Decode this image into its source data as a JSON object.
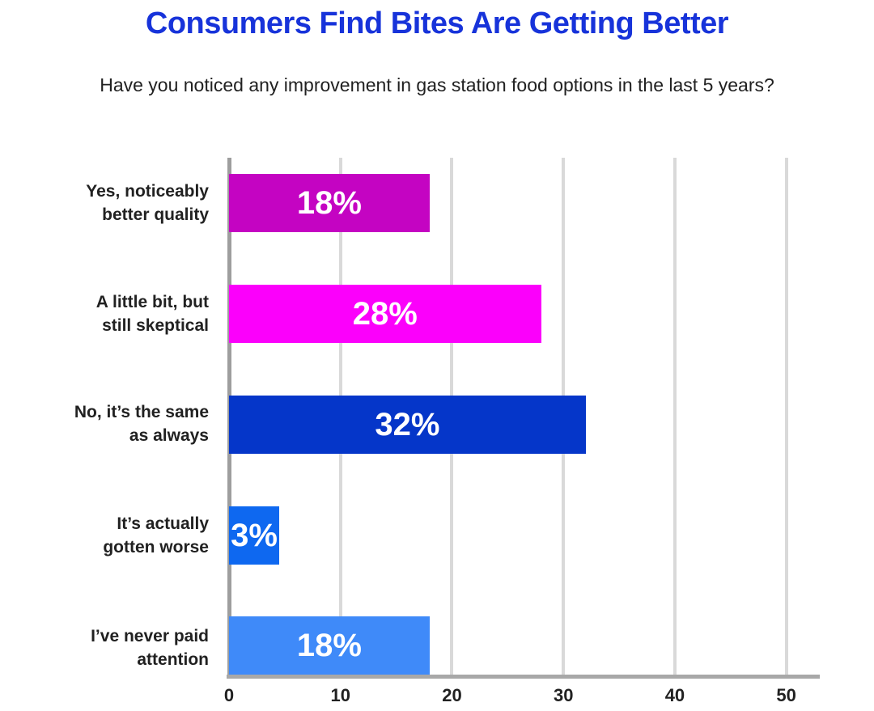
{
  "header": {
    "title": "Consumers Find Bites Are Getting Better",
    "subtitle": "Have you noticed any improvement in gas station food options in the last 5 years?"
  },
  "colors": {
    "title_blue": "#1733DA",
    "text_dark": "#212121",
    "value_label_white": "#FFFFFF",
    "gridline_gray": "#D9D9D9",
    "zero_line_gray": "#9E9E9E",
    "axis_line_gray": "#A8A8A8",
    "background": "#FFFFFF"
  },
  "chart_data": {
    "type": "bar",
    "orientation": "horizontal",
    "title": "Consumers Find Bites Are Getting Better",
    "subtitle": "Have you noticed any improvement in gas station food options in the last 5 years?",
    "categories": [
      "Yes, noticeably\nbetter quality",
      "A little bit, but\nstill skeptical",
      "No, it’s the same\nas always",
      "It’s actually\ngotten worse",
      "I’ve never paid\nattention"
    ],
    "values": [
      18,
      28,
      32,
      3,
      18
    ],
    "value_labels": [
      "18%",
      "28%",
      "32%",
      "3%",
      "18%"
    ],
    "bar_colors": [
      "#C404C2",
      "#FB00FB",
      "#0536C9",
      "#0E68F0",
      "#3F8AF9"
    ],
    "xlabel": "",
    "ylabel": "",
    "xlim": [
      0,
      53
    ],
    "xticks": [
      0,
      10,
      20,
      30,
      40,
      50
    ],
    "grid": "vertical",
    "legend": "none"
  }
}
